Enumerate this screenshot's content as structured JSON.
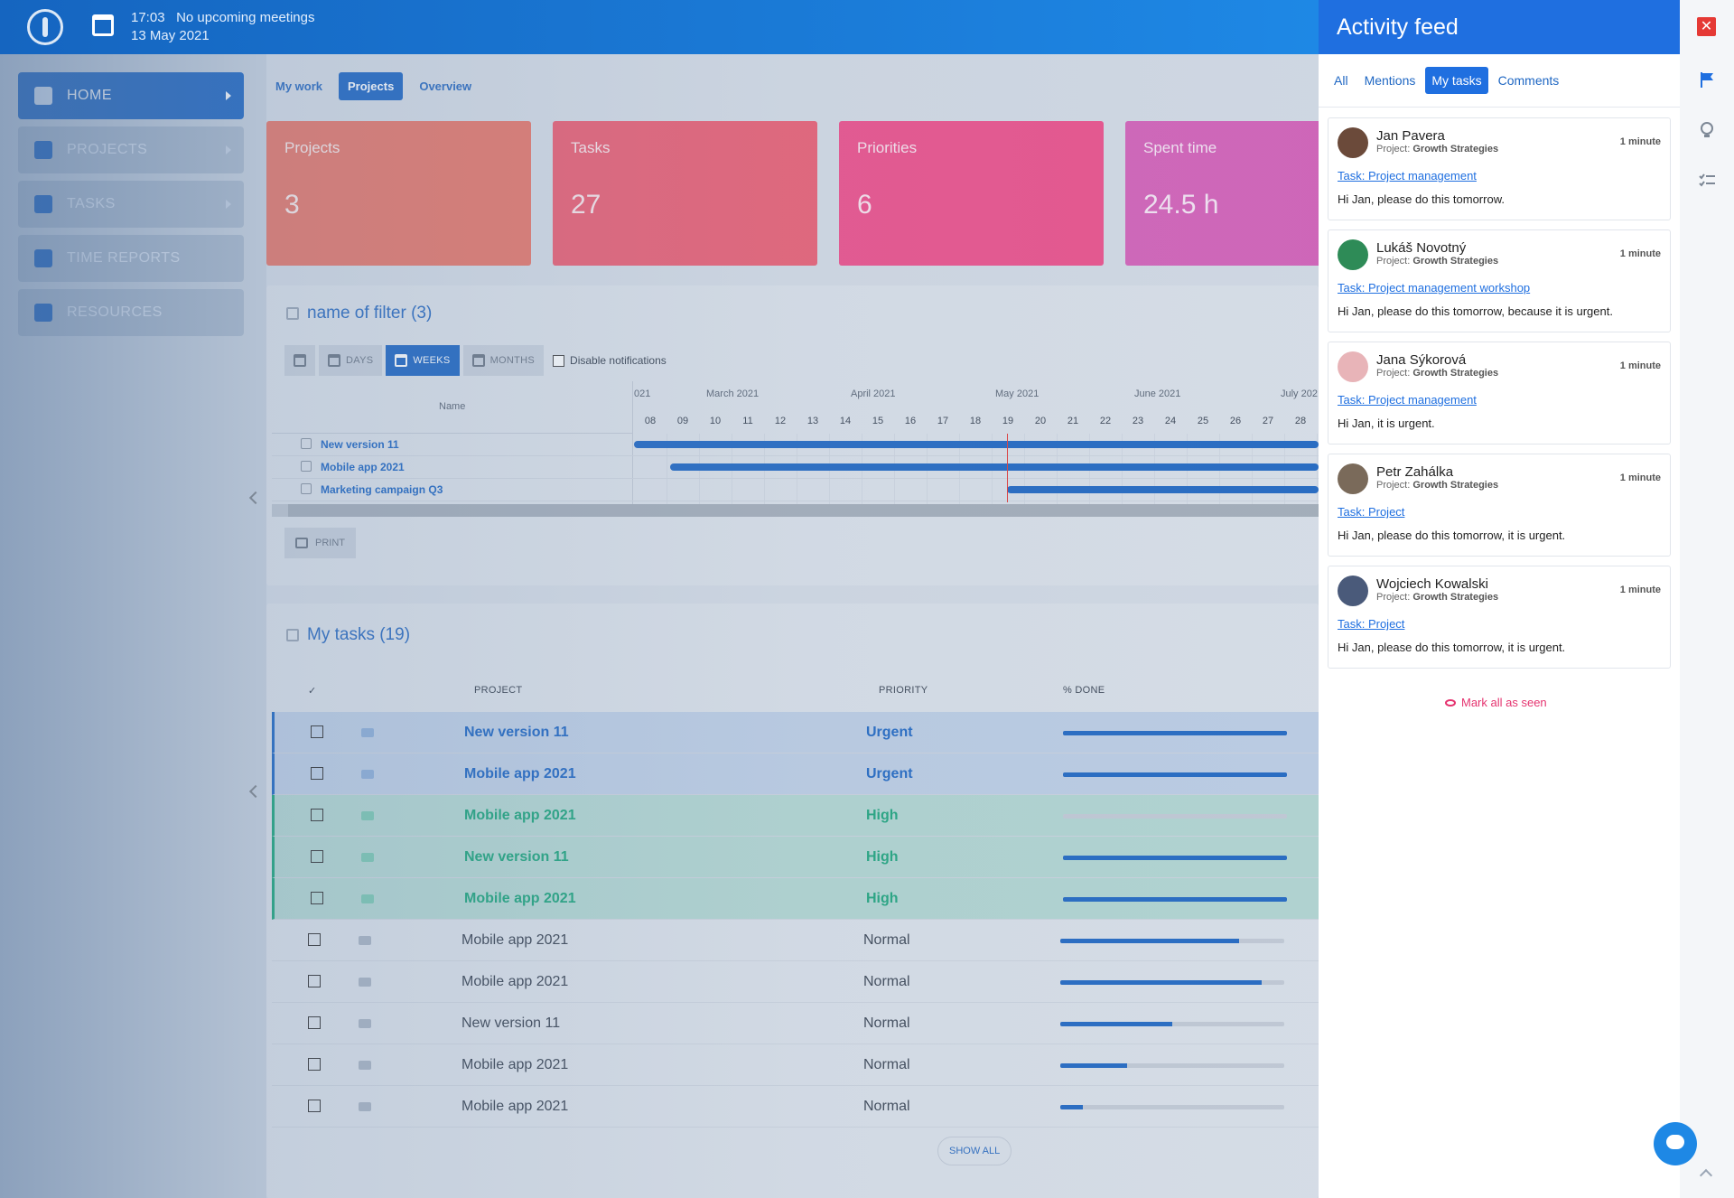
{
  "topbar": {
    "time": "17:03",
    "meetings": "No upcoming meetings",
    "date": "13 May 2021"
  },
  "sidebar": {
    "items": [
      {
        "label": "HOME",
        "icon": "dashboard-icon"
      },
      {
        "label": "PROJECTS",
        "icon": "projects-icon"
      },
      {
        "label": "TASKS",
        "icon": "tasks-icon"
      },
      {
        "label": "TIME REPORTS",
        "icon": "stopwatch-icon"
      },
      {
        "label": "RESOURCES",
        "icon": "briefcase-icon"
      }
    ]
  },
  "subtabs": [
    "My work",
    "Projects",
    "Overview"
  ],
  "cards": [
    {
      "label": "Projects",
      "value": "3",
      "color": "#e8786a"
    },
    {
      "label": "Tasks",
      "value": "27",
      "color": "#ec5f73"
    },
    {
      "label": "Priorities",
      "value": "6",
      "color": "#ef4f8a"
    },
    {
      "label": "Spent time",
      "value": "24.5 h",
      "color": "#d660b8"
    }
  ],
  "gantt": {
    "title": "name of filter (3)",
    "tools": {
      "days": "DAYS",
      "weeks": "WEEKS",
      "months": "MONTHS",
      "disable_notifications": "Disable notifications"
    },
    "name_header": "Name",
    "months": [
      "021",
      "March 2021",
      "April 2021",
      "May 2021",
      "June 2021",
      "July 202"
    ],
    "weeks": [
      "08",
      "09",
      "10",
      "11",
      "12",
      "13",
      "14",
      "15",
      "16",
      "17",
      "18",
      "19",
      "20",
      "21",
      "22",
      "23",
      "24",
      "25",
      "26",
      "27",
      "28"
    ],
    "rows": [
      {
        "name": "New version 11"
      },
      {
        "name": "Mobile app 2021"
      },
      {
        "name": "Marketing campaign Q3"
      }
    ],
    "print": "PRINT"
  },
  "tasks": {
    "title": "My tasks (19)",
    "headers": {
      "check": "✓",
      "project": "PROJECT",
      "priority": "PRIORITY",
      "done": "% DONE"
    },
    "rows": [
      {
        "project": "New version 11",
        "priority": "Urgent",
        "done": 100,
        "level": "urgent"
      },
      {
        "project": "Mobile app 2021",
        "priority": "Urgent",
        "done": 100,
        "level": "urgent"
      },
      {
        "project": "Mobile app 2021",
        "priority": "High",
        "done": 0,
        "level": "high"
      },
      {
        "project": "New version 11",
        "priority": "High",
        "done": 100,
        "level": "high"
      },
      {
        "project": "Mobile app 2021",
        "priority": "High",
        "done": 100,
        "level": "high"
      },
      {
        "project": "Mobile app 2021",
        "priority": "Normal",
        "done": 80,
        "level": "normal"
      },
      {
        "project": "Mobile app 2021",
        "priority": "Normal",
        "done": 90,
        "level": "normal"
      },
      {
        "project": "New version 11",
        "priority": "Normal",
        "done": 50,
        "level": "normal"
      },
      {
        "project": "Mobile app 2021",
        "priority": "Normal",
        "done": 30,
        "level": "normal"
      },
      {
        "project": "Mobile app 2021",
        "priority": "Normal",
        "done": 10,
        "level": "normal"
      }
    ],
    "show_all": "SHOW ALL"
  },
  "feed": {
    "title": "Activity feed",
    "tabs": [
      "All",
      "Mentions",
      "My tasks",
      "Comments"
    ],
    "active_tab": "My tasks",
    "items": [
      {
        "name": "Jan Pavera",
        "project_label": "Project:",
        "project": "Growth Strategies",
        "time": "1 minute",
        "link": "Task: Project management",
        "message": "Hi Jan, please do this tomorrow.",
        "avatar_color": "#6b4a3a"
      },
      {
        "name": "Lukáš Novotný",
        "project_label": "Project:",
        "project": "Growth Strategies",
        "time": "1 minute",
        "link": "Task: Project management workshop",
        "message": "Hi Jan, please do this tomorrow, because it is urgent.",
        "avatar_color": "#2e8b57"
      },
      {
        "name": "Jana Sýkorová",
        "project_label": "Project:",
        "project": "Growth Strategies",
        "time": "1 minute",
        "link": "Task: Project management",
        "message": "Hi Jan, it is urgent.",
        "avatar_color": "#e8b4b8"
      },
      {
        "name": "Petr Zahálka",
        "project_label": "Project:",
        "project": "Growth Strategies",
        "time": "1 minute",
        "link": "Task: Project",
        "message": "Hi Jan, please do this tomorrow, it is urgent.",
        "avatar_color": "#7a6a5a"
      },
      {
        "name": "Wojciech Kowalski",
        "project_label": "Project:",
        "project": "Growth Strategies",
        "time": "1 minute",
        "link": "Task: Project",
        "message": "Hi Jan, please do this tomorrow, it is urgent.",
        "avatar_color": "#4a5a7a"
      }
    ],
    "mark_all": "Mark all as seen"
  },
  "rail": {
    "close": "✕",
    "icons": [
      "flag-icon",
      "lightbulb-icon",
      "checklist-icon"
    ]
  },
  "colors": {
    "primary": "#1f67c3",
    "feed_header": "#1f6fe0",
    "urgent": "#1f67c3",
    "high": "#1ea67c",
    "close": "#e53935",
    "mark_seen": "#e5336f"
  }
}
